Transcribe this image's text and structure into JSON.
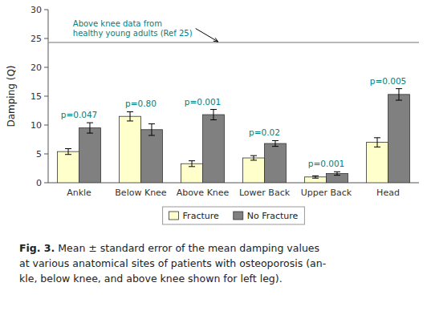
{
  "chart_data": {
    "type": "bar",
    "categories": [
      "Ankle",
      "Below Knee",
      "Above Knee",
      "Lower Back",
      "Upper Back",
      "Head"
    ],
    "series": [
      {
        "name": "Fracture",
        "color": "#ffffcc",
        "values": [
          5.4,
          11.5,
          3.3,
          4.3,
          1.0,
          7.0
        ],
        "errors": [
          0.5,
          0.8,
          0.5,
          0.4,
          0.2,
          0.8
        ]
      },
      {
        "name": "No Fracture",
        "color": "#808080",
        "values": [
          9.5,
          9.2,
          11.8,
          6.8,
          1.6,
          15.3
        ],
        "errors": [
          0.9,
          1.0,
          0.9,
          0.5,
          0.3,
          1.0
        ]
      }
    ],
    "p_values": [
      "p=0.047",
      "p=0.80",
      "p=0.001",
      "p=0.02",
      "p=0.001",
      "p=0.005"
    ],
    "p_value_color": "#008080",
    "reference_line": {
      "value": 24.3,
      "color": "#a0a0a0"
    },
    "annotations": [
      {
        "text": "Above knee  data from\nhealthy young adults (Ref 25)",
        "color": "#008080"
      }
    ],
    "ylabel": "Damping (Q)",
    "ylim": [
      0,
      30
    ],
    "yticks": [
      0,
      5,
      10,
      15,
      20,
      25,
      30
    ],
    "grid": false,
    "legend": "bottom",
    "caption": {
      "bold": "Fig. 3.",
      "lines": [
        " Mean ± standard error of the mean damping values",
        "at various anatomical sites of patients with osteoporosis (an-",
        "kle, below knee, and above knee shown for left leg)."
      ]
    }
  }
}
